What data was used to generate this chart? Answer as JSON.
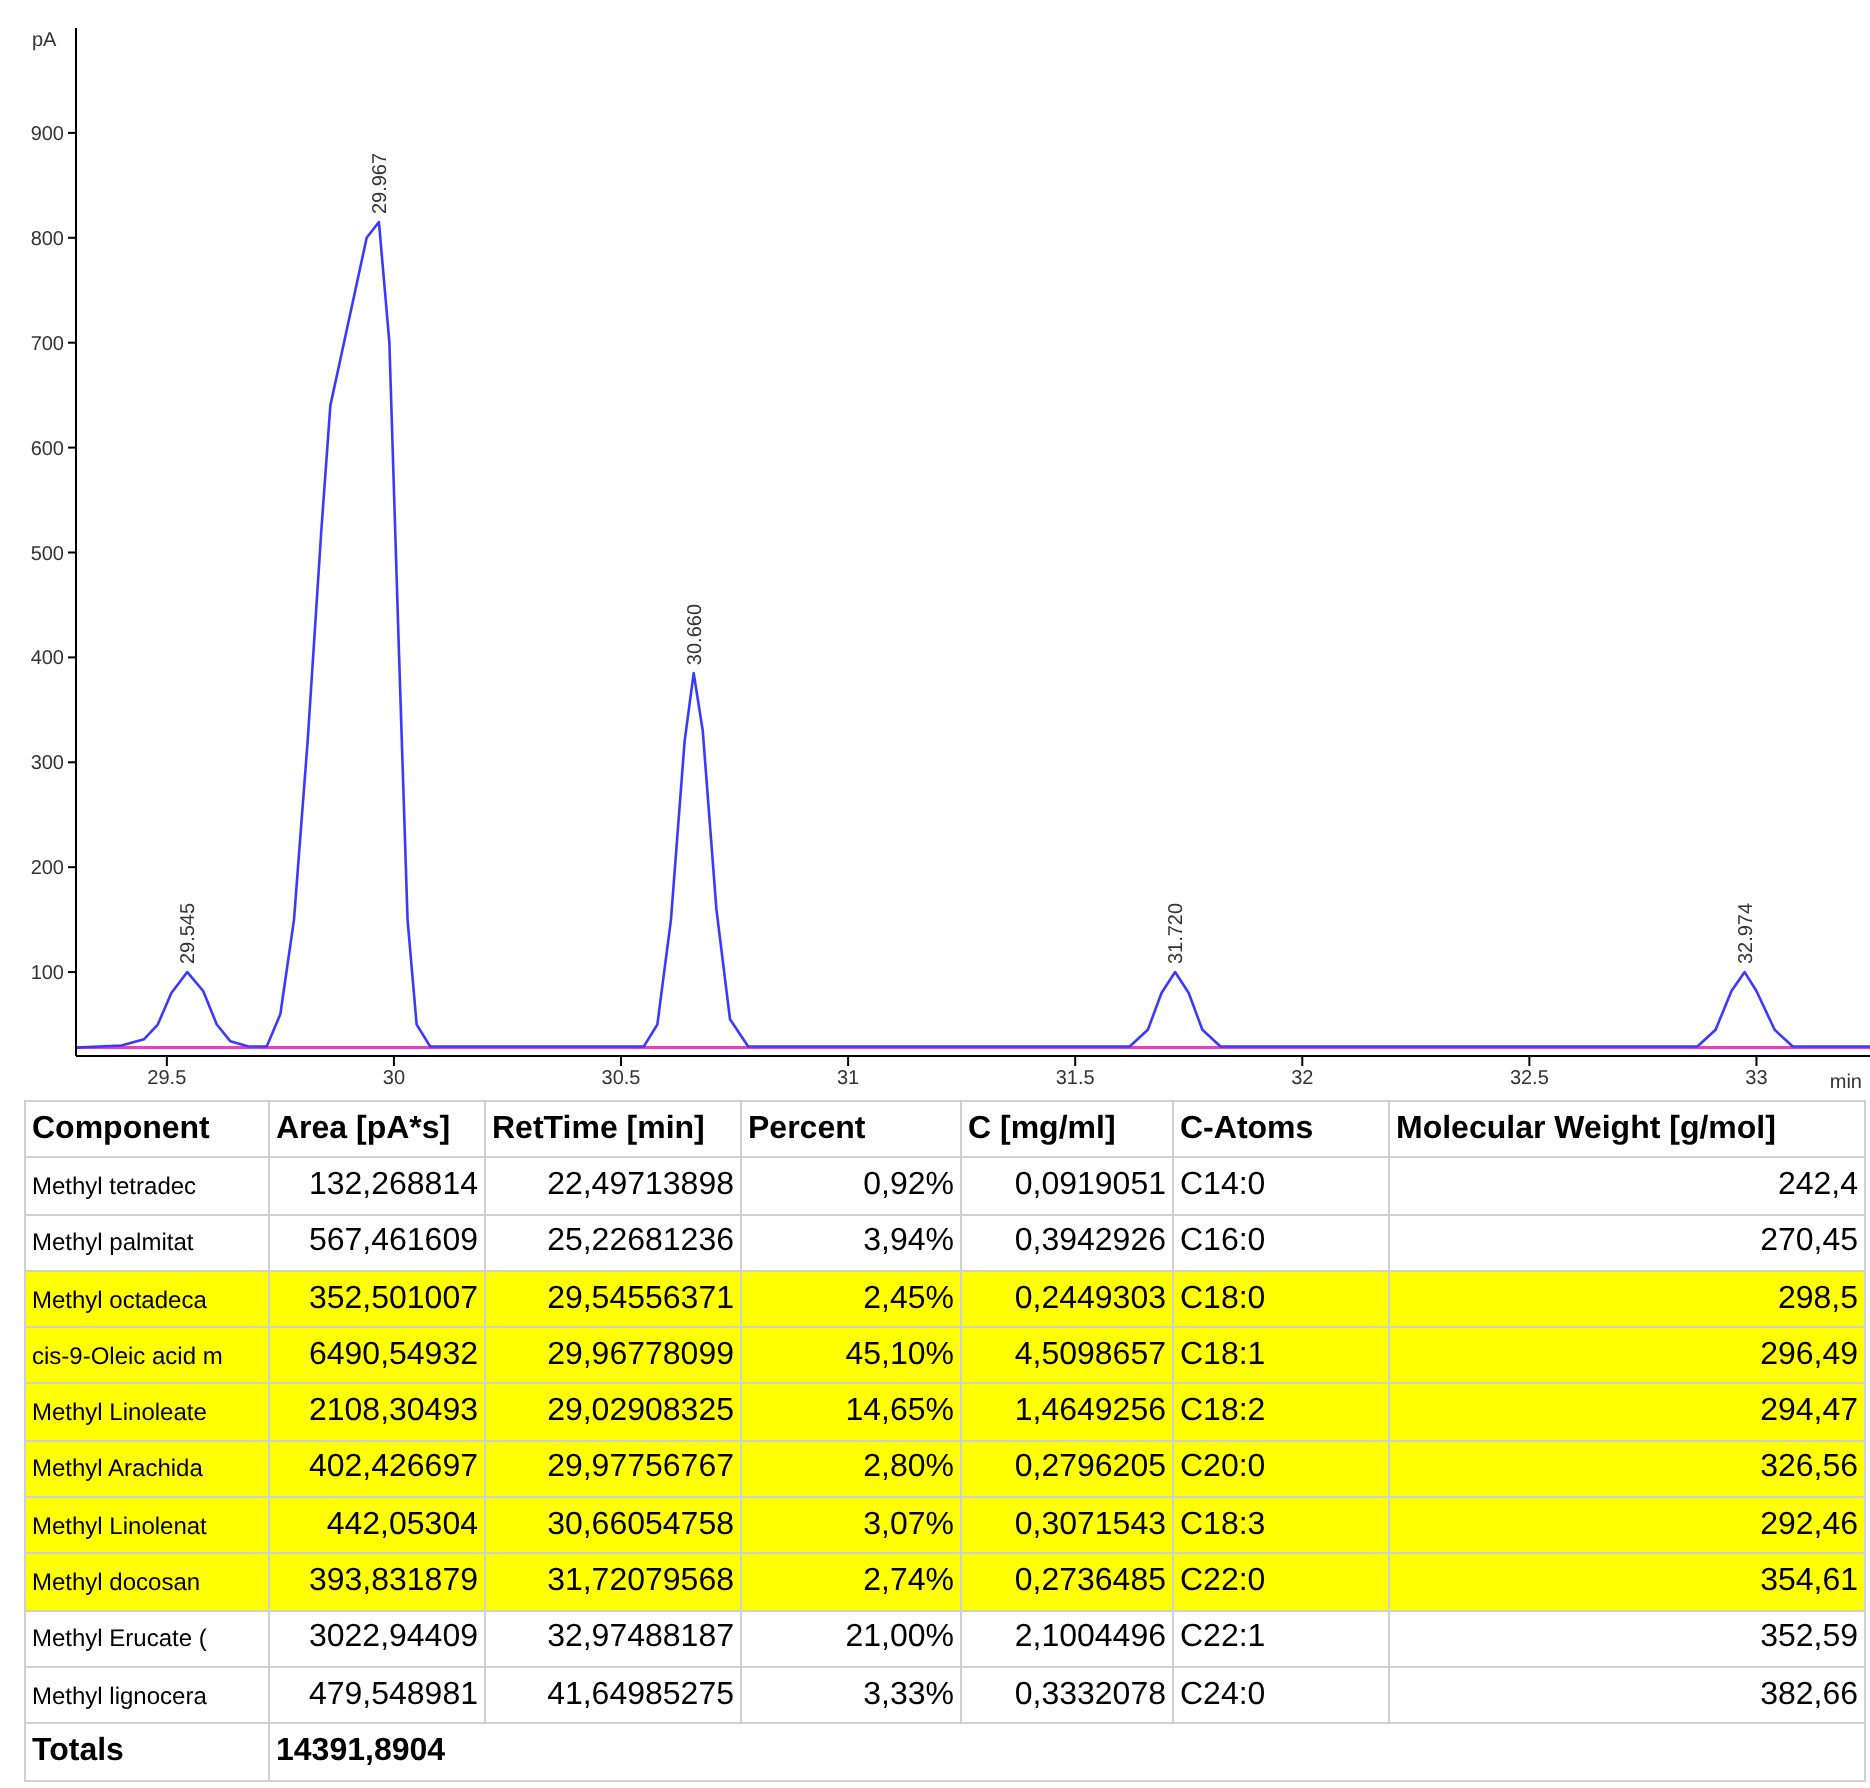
{
  "chart_data": [
    {
      "type": "line",
      "xlabel": "min",
      "ylabel": "pA",
      "series": [
        {
          "color": "#3a3aff",
          "x": [
            29.3,
            29.4,
            29.45,
            29.48,
            29.51,
            29.545,
            29.58,
            29.61,
            29.64,
            29.68,
            29.72,
            29.75,
            29.78,
            29.81,
            29.84,
            29.86,
            29.88,
            29.91,
            29.94,
            29.967,
            29.99,
            30.01,
            30.03,
            30.05,
            30.08,
            30.55,
            30.58,
            30.61,
            30.64,
            30.66,
            30.68,
            30.71,
            30.74,
            30.78,
            31.62,
            31.66,
            31.69,
            31.72,
            31.75,
            31.78,
            31.82,
            32.87,
            32.91,
            32.945,
            32.974,
            33.0,
            33.04,
            33.08,
            33.25
          ],
          "values": [
            28,
            30,
            36,
            50,
            80,
            100,
            82,
            50,
            34,
            29,
            29,
            60,
            150,
            320,
            520,
            640,
            680,
            740,
            800,
            815,
            700,
            420,
            150,
            50,
            29,
            29,
            50,
            150,
            320,
            385,
            330,
            160,
            55,
            29,
            29,
            45,
            80,
            100,
            80,
            45,
            29,
            29,
            45,
            82,
            100,
            82,
            45,
            29,
            29
          ]
        }
      ],
      "xlim": [
        29.3,
        33.25
      ],
      "xticks": [
        29.5,
        30,
        30.5,
        31,
        31.5,
        32,
        32.5,
        33
      ],
      "ylim": [
        20,
        1000
      ],
      "yticks": [
        100,
        200,
        300,
        400,
        500,
        600,
        700,
        800,
        900
      ],
      "grid": false,
      "legend": false,
      "marker": "none",
      "line_style": "solid",
      "ref_lines": [
        {
          "axis": "y",
          "value": 28,
          "color": "#ff33cc"
        }
      ],
      "annotations": [
        {
          "text": "29.545",
          "x": 29.545,
          "y": 100
        },
        {
          "text": "29.967",
          "x": 29.967,
          "y": 815
        },
        {
          "text": "30.660",
          "x": 30.66,
          "y": 385
        },
        {
          "text": "31.720",
          "x": 31.72,
          "y": 100
        },
        {
          "text": "32.974",
          "x": 32.974,
          "y": 100
        }
      ]
    },
    {
      "type": "other",
      "annotations": [
        "Component",
        "Area [pA*s]",
        "RetTime [min]",
        "Percent",
        "C [mg/ml]",
        "C-Atoms",
        "Molecular Weight [g/mol]",
        "Methyl tetradec",
        "132,268814",
        "22,49713898",
        "0,92%",
        "0,0919051",
        "C14:0",
        "242,4",
        "Methyl palmitat",
        "567,461609",
        "25,22681236",
        "3,94%",
        "0,3942926",
        "C16:0",
        "270,45",
        "Methyl octadeca",
        "352,501007",
        "29,54556371",
        "2,45%",
        "0,2449303",
        "C18:0",
        "298,5",
        "cis-9-Oleic acid m",
        "6490,54932",
        "29,96778099",
        "45,10%",
        "4,5098657",
        "C18:1",
        "296,49",
        "Methyl Linoleate",
        "2108,30493",
        "29,02908325",
        "14,65%",
        "1,4649256",
        "C18:2",
        "294,47",
        "Methyl Arachida",
        "402,426697",
        "29,97756767",
        "2,80%",
        "0,2796205",
        "C20:0",
        "326,56",
        "Methyl Linolenat",
        "442,05304",
        "30,66054758",
        "3,07%",
        "0,3071543",
        "C18:3",
        "292,46",
        "Methyl docosan",
        "393,831879",
        "31,72079568",
        "2,74%",
        "0,2736485",
        "C22:0",
        "354,61",
        "Methyl Erucate (",
        "3022,94409",
        "32,97488187",
        "21,00%",
        "2,1004496",
        "C22:1",
        "352,59",
        "Methyl lignocera",
        "479,548981",
        "41,64985275",
        "3,33%",
        "0,3332078",
        "C24:0",
        "382,66",
        "Totals",
        "14391,8904"
      ]
    }
  ]
}
